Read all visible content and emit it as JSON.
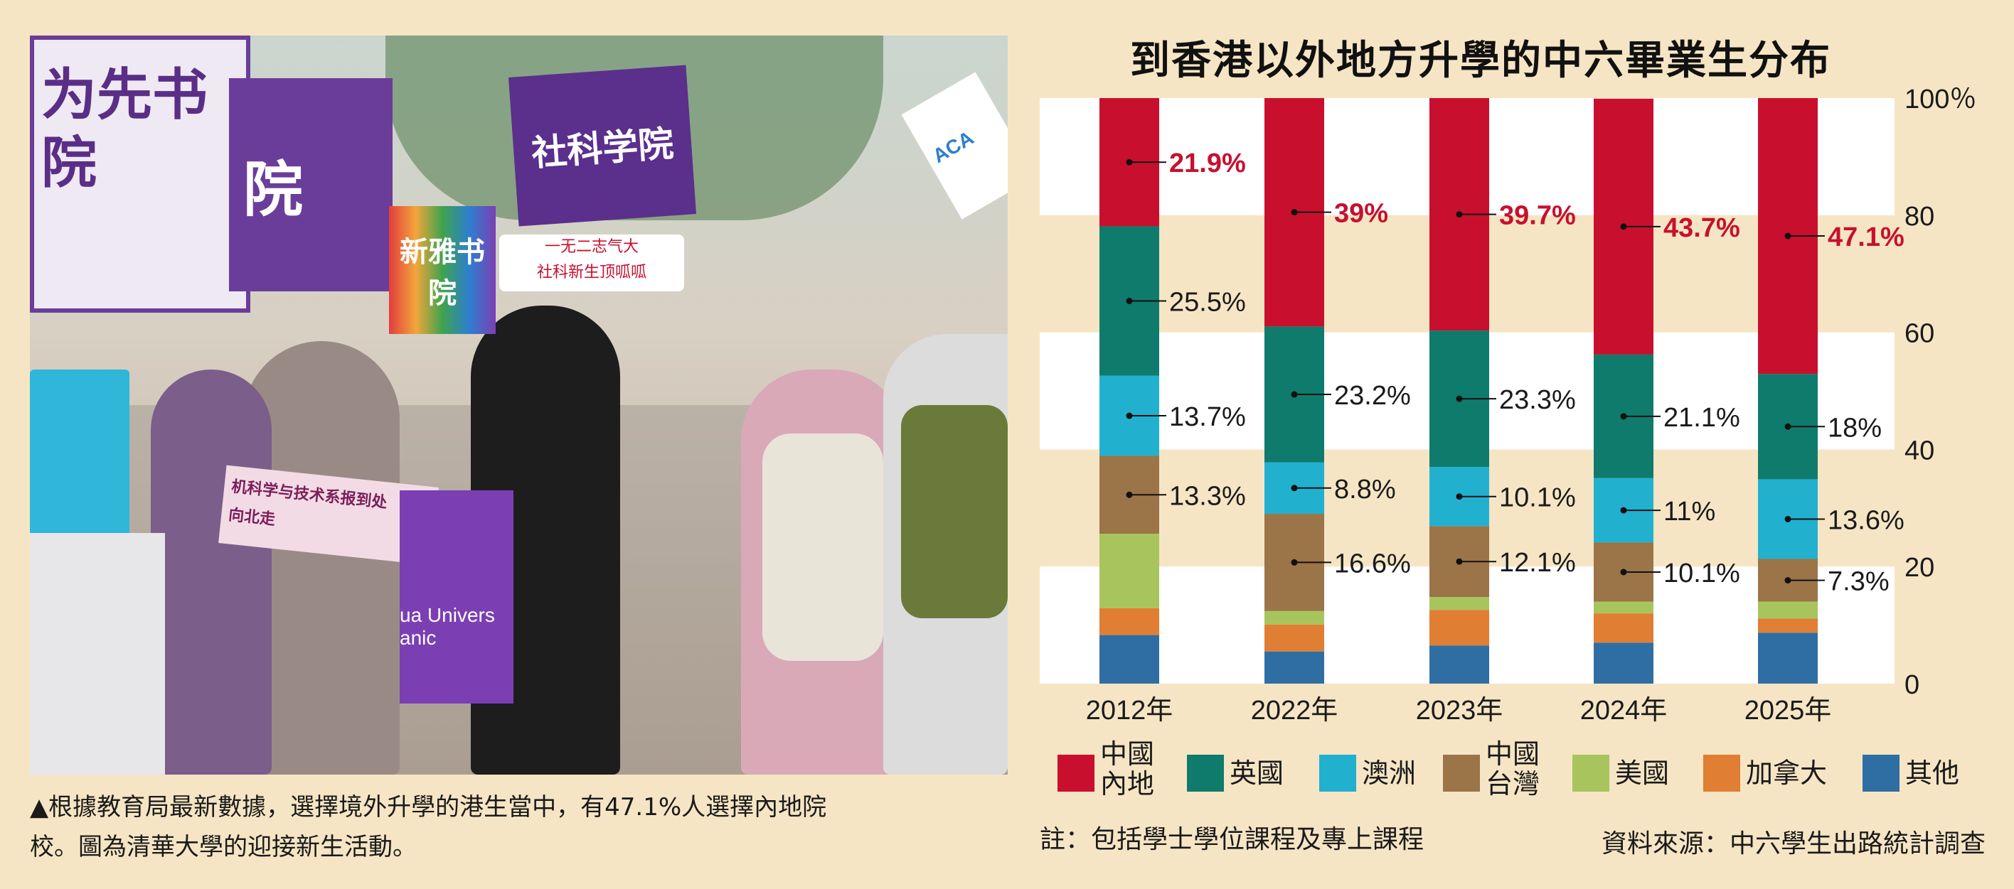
{
  "photo": {
    "signs": [
      "为先书院",
      "院",
      "社科学院",
      "新雅书院",
      "一无二志气大",
      "社科新生顶呱呱",
      "机科学与技术系报到处",
      "向北走",
      "ACA",
      "ua Univers",
      "anic"
    ]
  },
  "caption": {
    "line1": "▲根據教育局最新數據，選擇境外升學的港生當中，有47.1%人選擇內地院",
    "line2": "校。圖為清華大學的迎接新生活動。"
  },
  "note": "註：包括學士學位課程及專上課程",
  "source": "資料來源：中六學生出路統計調查",
  "colors": {
    "mainland": "#c8102e",
    "uk": "#0f7b6c",
    "australia": "#22b0cf",
    "taiwan": "#9b7448",
    "usa": "#a7c55c",
    "canada": "#e07e33",
    "other": "#2f6ea3",
    "band_white": "#ffffff",
    "band_beige": "#f6e5c4"
  },
  "chart_data": {
    "type": "bar",
    "stacked": true,
    "title": "到香港以外地方升學的中六畢業生分布",
    "categories": [
      "2012年",
      "2022年",
      "2023年",
      "2024年",
      "2025年"
    ],
    "ylim": [
      0,
      100
    ],
    "yticks": [
      0,
      20,
      40,
      60,
      80,
      100
    ],
    "ytick_labels": [
      "0",
      "20",
      "40",
      "60",
      "80",
      "100％"
    ],
    "y_axis_side": "right",
    "grid": "alternating horizontal bands",
    "legend_position": "bottom",
    "series": [
      {
        "key": "other",
        "name": "其他",
        "values": [
          8.3,
          5.5,
          6.5,
          7.0,
          8.7
        ],
        "labels": [
          null,
          null,
          null,
          null,
          null
        ]
      },
      {
        "key": "canada",
        "name": "加拿大",
        "values": [
          4.6,
          4.6,
          6.1,
          5.0,
          2.4
        ],
        "labels": [
          null,
          null,
          null,
          null,
          null
        ]
      },
      {
        "key": "usa",
        "name": "美國",
        "values": [
          12.7,
          2.3,
          2.2,
          2.0,
          2.9
        ],
        "labels": [
          null,
          null,
          null,
          null,
          null
        ]
      },
      {
        "key": "taiwan",
        "name": "中國台灣",
        "values": [
          13.3,
          16.6,
          12.1,
          10.1,
          7.3
        ],
        "labels": [
          "13.3%",
          "16.6%",
          "12.1%",
          "10.1%",
          "7.3%"
        ]
      },
      {
        "key": "australia",
        "name": "澳洲",
        "values": [
          13.7,
          8.8,
          10.1,
          11.0,
          13.6
        ],
        "labels": [
          "13.7%",
          "8.8%",
          "10.1%",
          "11%",
          "13.6%"
        ]
      },
      {
        "key": "uk",
        "name": "英國",
        "values": [
          25.5,
          23.2,
          23.3,
          21.1,
          18.0
        ],
        "labels": [
          "25.5%",
          "23.2%",
          "23.3%",
          "21.1%",
          "18%"
        ]
      },
      {
        "key": "mainland",
        "name": "中國內地",
        "values": [
          21.9,
          39.0,
          39.7,
          43.7,
          47.1
        ],
        "labels": [
          "21.9%",
          "39%",
          "39.7%",
          "43.7%",
          "47.1%"
        ]
      }
    ],
    "legend": [
      {
        "key": "mainland",
        "lines": [
          "中國",
          "內地"
        ]
      },
      {
        "key": "uk",
        "lines": [
          "英國"
        ]
      },
      {
        "key": "australia",
        "lines": [
          "澳洲"
        ]
      },
      {
        "key": "taiwan",
        "lines": [
          "中國",
          "台灣"
        ]
      },
      {
        "key": "usa",
        "lines": [
          "美國"
        ]
      },
      {
        "key": "canada",
        "lines": [
          "加拿大"
        ]
      },
      {
        "key": "other",
        "lines": [
          "其他"
        ]
      }
    ]
  }
}
